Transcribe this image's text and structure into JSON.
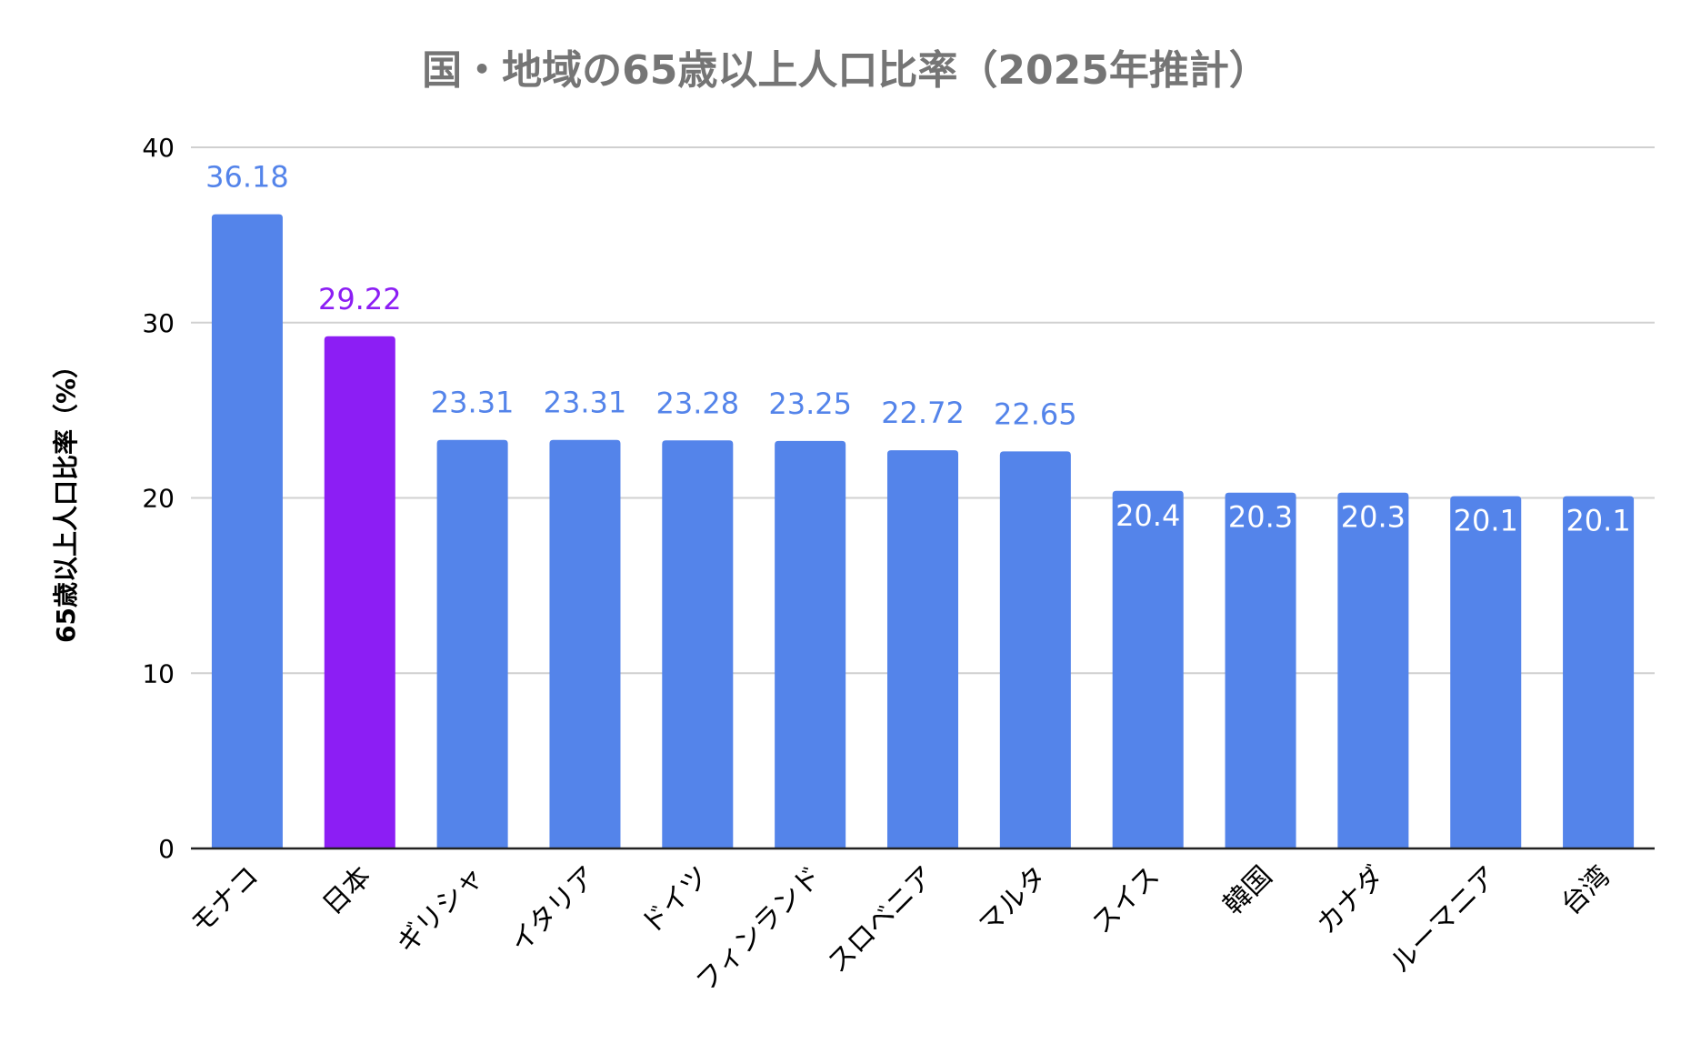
{
  "chart_data": {
    "type": "bar",
    "title": "国・地域の65歳以上人口比率（2025年推計）",
    "xlabel": "",
    "ylabel": "65歳以上人口比率（%）",
    "ylim": [
      0,
      40
    ],
    "yticks": [
      0,
      10,
      20,
      30,
      40
    ],
    "grid": true,
    "legend": "none",
    "categories": [
      "モナコ",
      "日本",
      "ギリシャ",
      "イタリア",
      "ドイツ",
      "フィンランド",
      "スロベニア",
      "マルタ",
      "スイス",
      "韓国",
      "カナダ",
      "ルーマニア",
      "台湾"
    ],
    "values": [
      36.18,
      29.22,
      23.31,
      23.31,
      23.28,
      23.25,
      22.72,
      22.65,
      20.4,
      20.3,
      20.3,
      20.1,
      20.1
    ],
    "data_labels": [
      "36.18",
      "29.22",
      "23.31",
      "23.31",
      "23.28",
      "23.25",
      "22.72",
      "22.65",
      "20.4",
      "20.3",
      "20.3",
      "20.1",
      "20.1"
    ],
    "colors": {
      "default_bar": "#5484ea",
      "highlight_bar": "#8c1ef4",
      "highlight_category": "日本",
      "label_outside_default": "#5484ea",
      "label_outside_highlight": "#8c1ef4",
      "label_inside": "#ffffff"
    },
    "labels_inside_from_index": 8
  }
}
